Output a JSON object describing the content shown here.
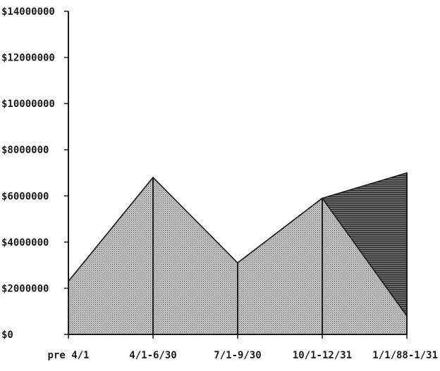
{
  "chart_data": {
    "type": "area",
    "stacked": true,
    "title": "",
    "xlabel": "",
    "ylabel": "",
    "categories": [
      "pre 4/1",
      "4/1-6/30",
      "7/1-9/30",
      "10/1-12/31",
      "1/1/88-1/31"
    ],
    "ylim": [
      0,
      14000000
    ],
    "yticks": [
      0,
      2000000,
      4000000,
      6000000,
      8000000,
      10000000,
      12000000,
      14000000
    ],
    "ytick_labels": [
      "$0",
      "$2000000",
      "$4000000",
      "$6000000",
      "$8000000",
      "$10000000",
      "$12000000",
      "$14000000"
    ],
    "series": [
      {
        "values": [
          2300000,
          6800000,
          3100000,
          5900000,
          800000
        ]
      },
      {
        "values": [
          0,
          0,
          0,
          0,
          6200000
        ]
      }
    ],
    "grid": false,
    "colors": {
      "series_light": "#b4b4b4",
      "series_dark": "#5a5a5a",
      "axis": "#1a1a1a"
    }
  }
}
